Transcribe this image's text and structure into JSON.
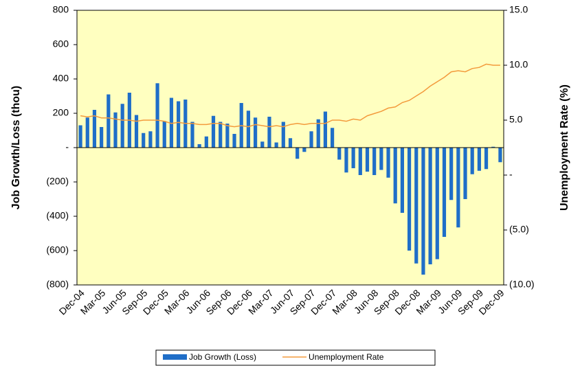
{
  "chart_data": {
    "type": "bar-line",
    "y_title": "Job Growth/Loss (thou)",
    "y2_title": "Unemployment Rate (%)",
    "categories": [
      "Dec-04",
      null,
      null,
      "Mar-05",
      null,
      null,
      "Jun-05",
      null,
      null,
      "Sep-05",
      null,
      null,
      "Dec-05",
      null,
      null,
      "Mar-06",
      null,
      null,
      "Jun-06",
      null,
      null,
      "Sep-06",
      null,
      null,
      "Dec-06",
      null,
      null,
      "Mar-07",
      null,
      null,
      "Jun-07",
      null,
      null,
      "Sep-07",
      null,
      null,
      "Dec-07",
      null,
      null,
      "Mar-08",
      null,
      null,
      "Jun-08",
      null,
      null,
      "Sep-08",
      null,
      null,
      "Dec-08",
      null,
      null,
      "Mar-09",
      null,
      null,
      "Jun-09",
      null,
      null,
      "Sep-09",
      null,
      null,
      "Dec-09"
    ],
    "series": [
      {
        "name": "Job Growth (Loss)",
        "color": "#1f6ec8",
        "kind": "bar",
        "values": [
          130,
          175,
          220,
          120,
          310,
          205,
          255,
          320,
          190,
          85,
          95,
          375,
          155,
          290,
          270,
          280,
          150,
          20,
          65,
          185,
          150,
          140,
          80,
          260,
          215,
          175,
          35,
          180,
          30,
          150,
          55,
          -65,
          -25,
          95,
          165,
          210,
          115,
          -70,
          -145,
          -120,
          -160,
          -140,
          -160,
          -130,
          -175,
          -325,
          -380,
          -600,
          -675,
          -740,
          -680,
          -650,
          -520,
          -305,
          -465,
          -300,
          -155,
          -135,
          -125,
          5,
          -85
        ]
      },
      {
        "name": "Unemployment Rate",
        "color": "#f39a3c",
        "kind": "line",
        "axis": "y2",
        "values": [
          5.4,
          5.3,
          5.4,
          5.2,
          5.2,
          5.1,
          5.0,
          5.0,
          4.9,
          5.0,
          5.0,
          5.0,
          4.9,
          4.7,
          4.8,
          4.7,
          4.7,
          4.6,
          4.6,
          4.7,
          4.7,
          4.5,
          4.4,
          4.5,
          4.4,
          4.6,
          4.5,
          4.4,
          4.5,
          4.4,
          4.6,
          4.7,
          4.6,
          4.7,
          4.7,
          4.7,
          5.0,
          5.0,
          4.9,
          5.1,
          5.0,
          5.4,
          5.6,
          5.8,
          6.1,
          6.2,
          6.6,
          6.8,
          7.2,
          7.6,
          8.1,
          8.5,
          8.9,
          9.4,
          9.5,
          9.4,
          9.7,
          9.8,
          10.1,
          10.0,
          10.0
        ]
      }
    ],
    "ylim": [
      -800,
      800
    ],
    "yticks": [
      {
        "value": -800,
        "label": "(800)"
      },
      {
        "value": -600,
        "label": "(600)"
      },
      {
        "value": -400,
        "label": "(400)"
      },
      {
        "value": -200,
        "label": "(200)"
      },
      {
        "value": 0,
        "label": "-"
      },
      200,
      400,
      600,
      800
    ],
    "y2lim": [
      -10,
      15
    ],
    "y2ticks": [
      {
        "value": -10,
        "label": "(10.0)"
      },
      {
        "value": -5,
        "label": "(5.0)"
      },
      {
        "value": 0,
        "label": "-"
      },
      {
        "value": 5,
        "label": "5.0"
      },
      {
        "value": 10,
        "label": "10.0"
      },
      {
        "value": 15,
        "label": "15.0"
      }
    ],
    "plot_background": "#ffffc0",
    "legend": "bottom"
  }
}
